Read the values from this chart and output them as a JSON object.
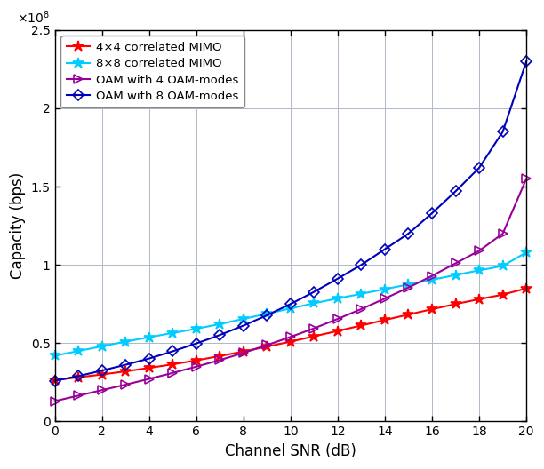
{
  "title": "",
  "xlabel": "Channel SNR (dB)",
  "ylabel": "Capacity (bps)",
  "xlim": [
    0,
    20
  ],
  "ylim": [
    0,
    250000000.0
  ],
  "yticks": [
    0,
    50000000.0,
    100000000.0,
    150000000.0,
    200000000.0,
    250000000.0
  ],
  "xticks": [
    0,
    2,
    4,
    6,
    8,
    10,
    12,
    14,
    16,
    18,
    20
  ],
  "snr_db": [
    0,
    1,
    2,
    3,
    4,
    5,
    6,
    7,
    8,
    9,
    10,
    11,
    12,
    13,
    14,
    15,
    16,
    17,
    18,
    19,
    20
  ],
  "series": [
    {
      "label": "4×4 correlated MIMO",
      "color": "#ff0000",
      "marker": "*",
      "markersize": 9,
      "linewidth": 1.5,
      "values": [
        26500000.0,
        28200000.0,
        30000000.0,
        32000000.0,
        34200000.0,
        36500000.0,
        39000000.0,
        41800000.0,
        44700000.0,
        47800000.0,
        51000000.0,
        54400000.0,
        57800000.0,
        61300000.0,
        64800000.0,
        68300000.0,
        71700000.0,
        75000000.0,
        78100000.0,
        81000000.0,
        85000000.0
      ]
    },
    {
      "label": "8×8 correlated MIMO",
      "color": "#00ccff",
      "marker": "*",
      "markersize": 9,
      "linewidth": 1.5,
      "values": [
        42000000.0,
        45000000.0,
        48000000.0,
        51000000.0,
        53800000.0,
        56500000.0,
        59200000.0,
        62200000.0,
        65500000.0,
        68800000.0,
        72200000.0,
        75500000.0,
        78600000.0,
        81500000.0,
        84500000.0,
        87500000.0,
        90500000.0,
        93500000.0,
        96500000.0,
        99300000.0,
        108000000.0
      ]
    },
    {
      "label": "OAM with 4 OAM-modes",
      "color": "#990099",
      "marker": ">",
      "markersize": 7,
      "linewidth": 1.5,
      "values": [
        13000000.0,
        16500000.0,
        20000000.0,
        23500000.0,
        27200000.0,
        31000000.0,
        35000000.0,
        39200000.0,
        43800000.0,
        48800000.0,
        54000000.0,
        59500000.0,
        65500000.0,
        71800000.0,
        78500000.0,
        85500000.0,
        93000000.0,
        101000000.0,
        109000000.0,
        120000000.0,
        155000000.0
      ]
    },
    {
      "label": "OAM with 8 OAM-modes",
      "color": "#0000bb",
      "marker": "D",
      "markersize": 6,
      "linewidth": 1.5,
      "values": [
        26000000.0,
        29000000.0,
        32500000.0,
        36200000.0,
        40200000.0,
        44800000.0,
        49800000.0,
        55200000.0,
        61200000.0,
        67800000.0,
        75000000.0,
        82800000.0,
        91200000.0,
        100000000.0,
        110000000.0,
        120000000.0,
        133000000.0,
        147000000.0,
        162000000.0,
        185000000.0,
        230000000.0
      ]
    }
  ],
  "figwidth": 6.12,
  "figheight": 5.28,
  "dpi": 100
}
